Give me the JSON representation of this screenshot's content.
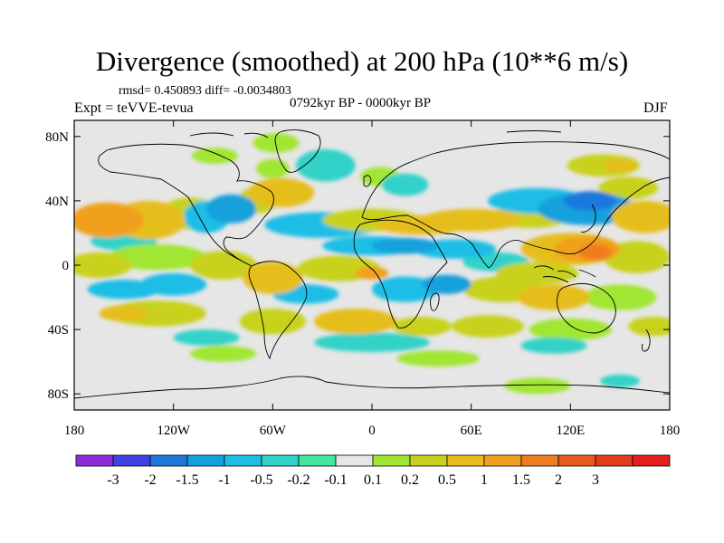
{
  "header": {
    "title": "Divergence (smoothed) at 200 hPa (10**6 m/s)",
    "stats": "rmsd= 0.450893 diff= -0.0034803",
    "experiment": "Expt = teVVE-tevua",
    "period": "0792kyr BP - 0000kyr BP",
    "season": "DJF"
  },
  "map": {
    "projection": "cylindrical-equidistant",
    "lon_range": [
      -180,
      180
    ],
    "lat_range": [
      -90,
      90
    ],
    "y_ticks": [
      {
        "lat": 80,
        "label": "80N"
      },
      {
        "lat": 40,
        "label": "40N"
      },
      {
        "lat": 0,
        "label": "0"
      },
      {
        "lat": -40,
        "label": "40S"
      },
      {
        "lat": -80,
        "label": "80S"
      }
    ],
    "x_ticks": [
      {
        "lon": -180,
        "label": "180"
      },
      {
        "lon": -120,
        "label": "120W"
      },
      {
        "lon": -60,
        "label": "60W"
      },
      {
        "lon": 0,
        "label": "0"
      },
      {
        "lon": 60,
        "label": "60E"
      },
      {
        "lon": 120,
        "label": "120E"
      },
      {
        "lon": 180,
        "label": "180"
      }
    ],
    "background_color": "#e6e6e6",
    "blobs": [
      {
        "lon": -160,
        "lat": 28,
        "rx": 22,
        "ry": 11,
        "level": 1.5
      },
      {
        "lon": -135,
        "lat": 28,
        "rx": 22,
        "ry": 12,
        "level": 1.0
      },
      {
        "lon": -110,
        "lat": 32,
        "rx": 18,
        "ry": 10,
        "level": 0.5
      },
      {
        "lon": -150,
        "lat": 15,
        "rx": 20,
        "ry": 6,
        "level": -0.2
      },
      {
        "lon": -100,
        "lat": 30,
        "rx": 14,
        "ry": 10,
        "level": -0.5
      },
      {
        "lon": -85,
        "lat": 35,
        "rx": 15,
        "ry": 9,
        "level": -1.0
      },
      {
        "lon": -70,
        "lat": 40,
        "rx": 12,
        "ry": 8,
        "level": 0.5
      },
      {
        "lon": -55,
        "lat": 45,
        "rx": 20,
        "ry": 9,
        "level": 1.0
      },
      {
        "lon": -28,
        "lat": 62,
        "rx": 18,
        "ry": 10,
        "level": -0.2
      },
      {
        "lon": -60,
        "lat": 60,
        "rx": 10,
        "ry": 6,
        "level": 0.2
      },
      {
        "lon": -95,
        "lat": 68,
        "rx": 14,
        "ry": 5,
        "level": 0.2
      },
      {
        "lon": -58,
        "lat": 76,
        "rx": 14,
        "ry": 6,
        "level": 0.2
      },
      {
        "lon": 5,
        "lat": 55,
        "rx": 12,
        "ry": 6,
        "level": 0.2
      },
      {
        "lon": 20,
        "lat": 50,
        "rx": 14,
        "ry": 7,
        "level": -0.2
      },
      {
        "lon": -30,
        "lat": 25,
        "rx": 35,
        "ry": 8,
        "level": -0.5
      },
      {
        "lon": 0,
        "lat": 28,
        "rx": 30,
        "ry": 7,
        "level": 0.5
      },
      {
        "lon": 30,
        "lat": 25,
        "rx": 28,
        "ry": 6,
        "level": 1.0
      },
      {
        "lon": 60,
        "lat": 28,
        "rx": 30,
        "ry": 7,
        "level": 1.0
      },
      {
        "lon": 95,
        "lat": 30,
        "rx": 25,
        "ry": 7,
        "level": 0.5
      },
      {
        "lon": 100,
        "lat": 40,
        "rx": 30,
        "ry": 8,
        "level": -0.5
      },
      {
        "lon": 130,
        "lat": 35,
        "rx": 30,
        "ry": 10,
        "level": -1.0
      },
      {
        "lon": 132,
        "lat": 40,
        "rx": 16,
        "ry": 6,
        "level": -1.5
      },
      {
        "lon": 165,
        "lat": 30,
        "rx": 20,
        "ry": 10,
        "level": 1.0
      },
      {
        "lon": 155,
        "lat": 48,
        "rx": 18,
        "ry": 7,
        "level": 0.5
      },
      {
        "lon": 140,
        "lat": 62,
        "rx": 22,
        "ry": 7,
        "level": 0.5
      },
      {
        "lon": 150,
        "lat": 62,
        "rx": 10,
        "ry": 4,
        "level": 1.0
      },
      {
        "lon": 0,
        "lat": 12,
        "rx": 30,
        "ry": 6,
        "level": -0.5
      },
      {
        "lon": 20,
        "lat": 12,
        "rx": 20,
        "ry": 5,
        "level": -1.0
      },
      {
        "lon": 50,
        "lat": 10,
        "rx": 25,
        "ry": 6,
        "level": -0.5
      },
      {
        "lon": 75,
        "lat": 2,
        "rx": 20,
        "ry": 6,
        "level": -0.2
      },
      {
        "lon": 120,
        "lat": 10,
        "rx": 30,
        "ry": 10,
        "level": 1.0
      },
      {
        "lon": 130,
        "lat": 10,
        "rx": 20,
        "ry": 8,
        "level": 1.5
      },
      {
        "lon": 135,
        "lat": 8,
        "rx": 10,
        "ry": 5,
        "level": 2.0
      },
      {
        "lon": 100,
        "lat": -5,
        "rx": 25,
        "ry": 7,
        "level": 0.5
      },
      {
        "lon": 160,
        "lat": 5,
        "rx": 20,
        "ry": 10,
        "level": 0.5
      },
      {
        "lon": -165,
        "lat": 0,
        "rx": 20,
        "ry": 8,
        "level": 0.5
      },
      {
        "lon": -130,
        "lat": 5,
        "rx": 30,
        "ry": 8,
        "level": 0.2
      },
      {
        "lon": -90,
        "lat": 0,
        "rx": 20,
        "ry": 9,
        "level": 0.5
      },
      {
        "lon": -60,
        "lat": -8,
        "rx": 18,
        "ry": 10,
        "level": 1.0
      },
      {
        "lon": -20,
        "lat": -2,
        "rx": 25,
        "ry": 8,
        "level": 0.5
      },
      {
        "lon": 0,
        "lat": -5,
        "rx": 10,
        "ry": 4,
        "level": 1.5
      },
      {
        "lon": -150,
        "lat": -15,
        "rx": 22,
        "ry": 6,
        "level": -0.5
      },
      {
        "lon": -120,
        "lat": -12,
        "rx": 20,
        "ry": 7,
        "level": -0.5
      },
      {
        "lon": -40,
        "lat": -18,
        "rx": 20,
        "ry": 6,
        "level": -0.5
      },
      {
        "lon": 20,
        "lat": -15,
        "rx": 20,
        "ry": 8,
        "level": -0.5
      },
      {
        "lon": 45,
        "lat": -12,
        "rx": 15,
        "ry": 6,
        "level": -1.0
      },
      {
        "lon": 80,
        "lat": -15,
        "rx": 25,
        "ry": 8,
        "level": 0.5
      },
      {
        "lon": 110,
        "lat": -20,
        "rx": 22,
        "ry": 8,
        "level": 1.0
      },
      {
        "lon": 150,
        "lat": -20,
        "rx": 22,
        "ry": 8,
        "level": 0.2
      },
      {
        "lon": -130,
        "lat": -30,
        "rx": 30,
        "ry": 8,
        "level": 0.5
      },
      {
        "lon": -150,
        "lat": -30,
        "rx": 15,
        "ry": 5,
        "level": 1.0
      },
      {
        "lon": -60,
        "lat": -35,
        "rx": 20,
        "ry": 8,
        "level": 0.5
      },
      {
        "lon": -10,
        "lat": -35,
        "rx": 25,
        "ry": 8,
        "level": 1.0
      },
      {
        "lon": 30,
        "lat": -38,
        "rx": 18,
        "ry": 6,
        "level": 0.5
      },
      {
        "lon": 70,
        "lat": -38,
        "rx": 22,
        "ry": 7,
        "level": 0.5
      },
      {
        "lon": 120,
        "lat": -40,
        "rx": 25,
        "ry": 7,
        "level": 0.2
      },
      {
        "lon": 170,
        "lat": -38,
        "rx": 15,
        "ry": 6,
        "level": 0.5
      },
      {
        "lon": -100,
        "lat": -45,
        "rx": 20,
        "ry": 5,
        "level": -0.2
      },
      {
        "lon": 0,
        "lat": -48,
        "rx": 35,
        "ry": 6,
        "level": -0.2
      },
      {
        "lon": 110,
        "lat": -50,
        "rx": 20,
        "ry": 5,
        "level": -0.2
      },
      {
        "lon": -90,
        "lat": -55,
        "rx": 20,
        "ry": 5,
        "level": 0.2
      },
      {
        "lon": 40,
        "lat": -58,
        "rx": 25,
        "ry": 5,
        "level": 0.2
      },
      {
        "lon": 100,
        "lat": -75,
        "rx": 20,
        "ry": 5,
        "level": 0.2
      },
      {
        "lon": 150,
        "lat": -72,
        "rx": 12,
        "ry": 4,
        "level": -0.2
      }
    ]
  },
  "colorbar": {
    "colors": [
      "#8c2fd8",
      "#4040e6",
      "#1e78dc",
      "#14a0dc",
      "#1ebee6",
      "#32d2c8",
      "#46e6a0",
      "#e6e6e6",
      "#a0e632",
      "#c8d21e",
      "#e6be1e",
      "#f0a01e",
      "#f07d1e",
      "#e65a1e",
      "#e63c1e",
      "#e61e1e"
    ],
    "labels": [
      "-3",
      "-2",
      "-1.5",
      "-1",
      "-0.5",
      "-0.2",
      "-0.1",
      "0.1",
      "0.2",
      "0.5",
      "1",
      "1.5",
      "2",
      "3"
    ]
  }
}
